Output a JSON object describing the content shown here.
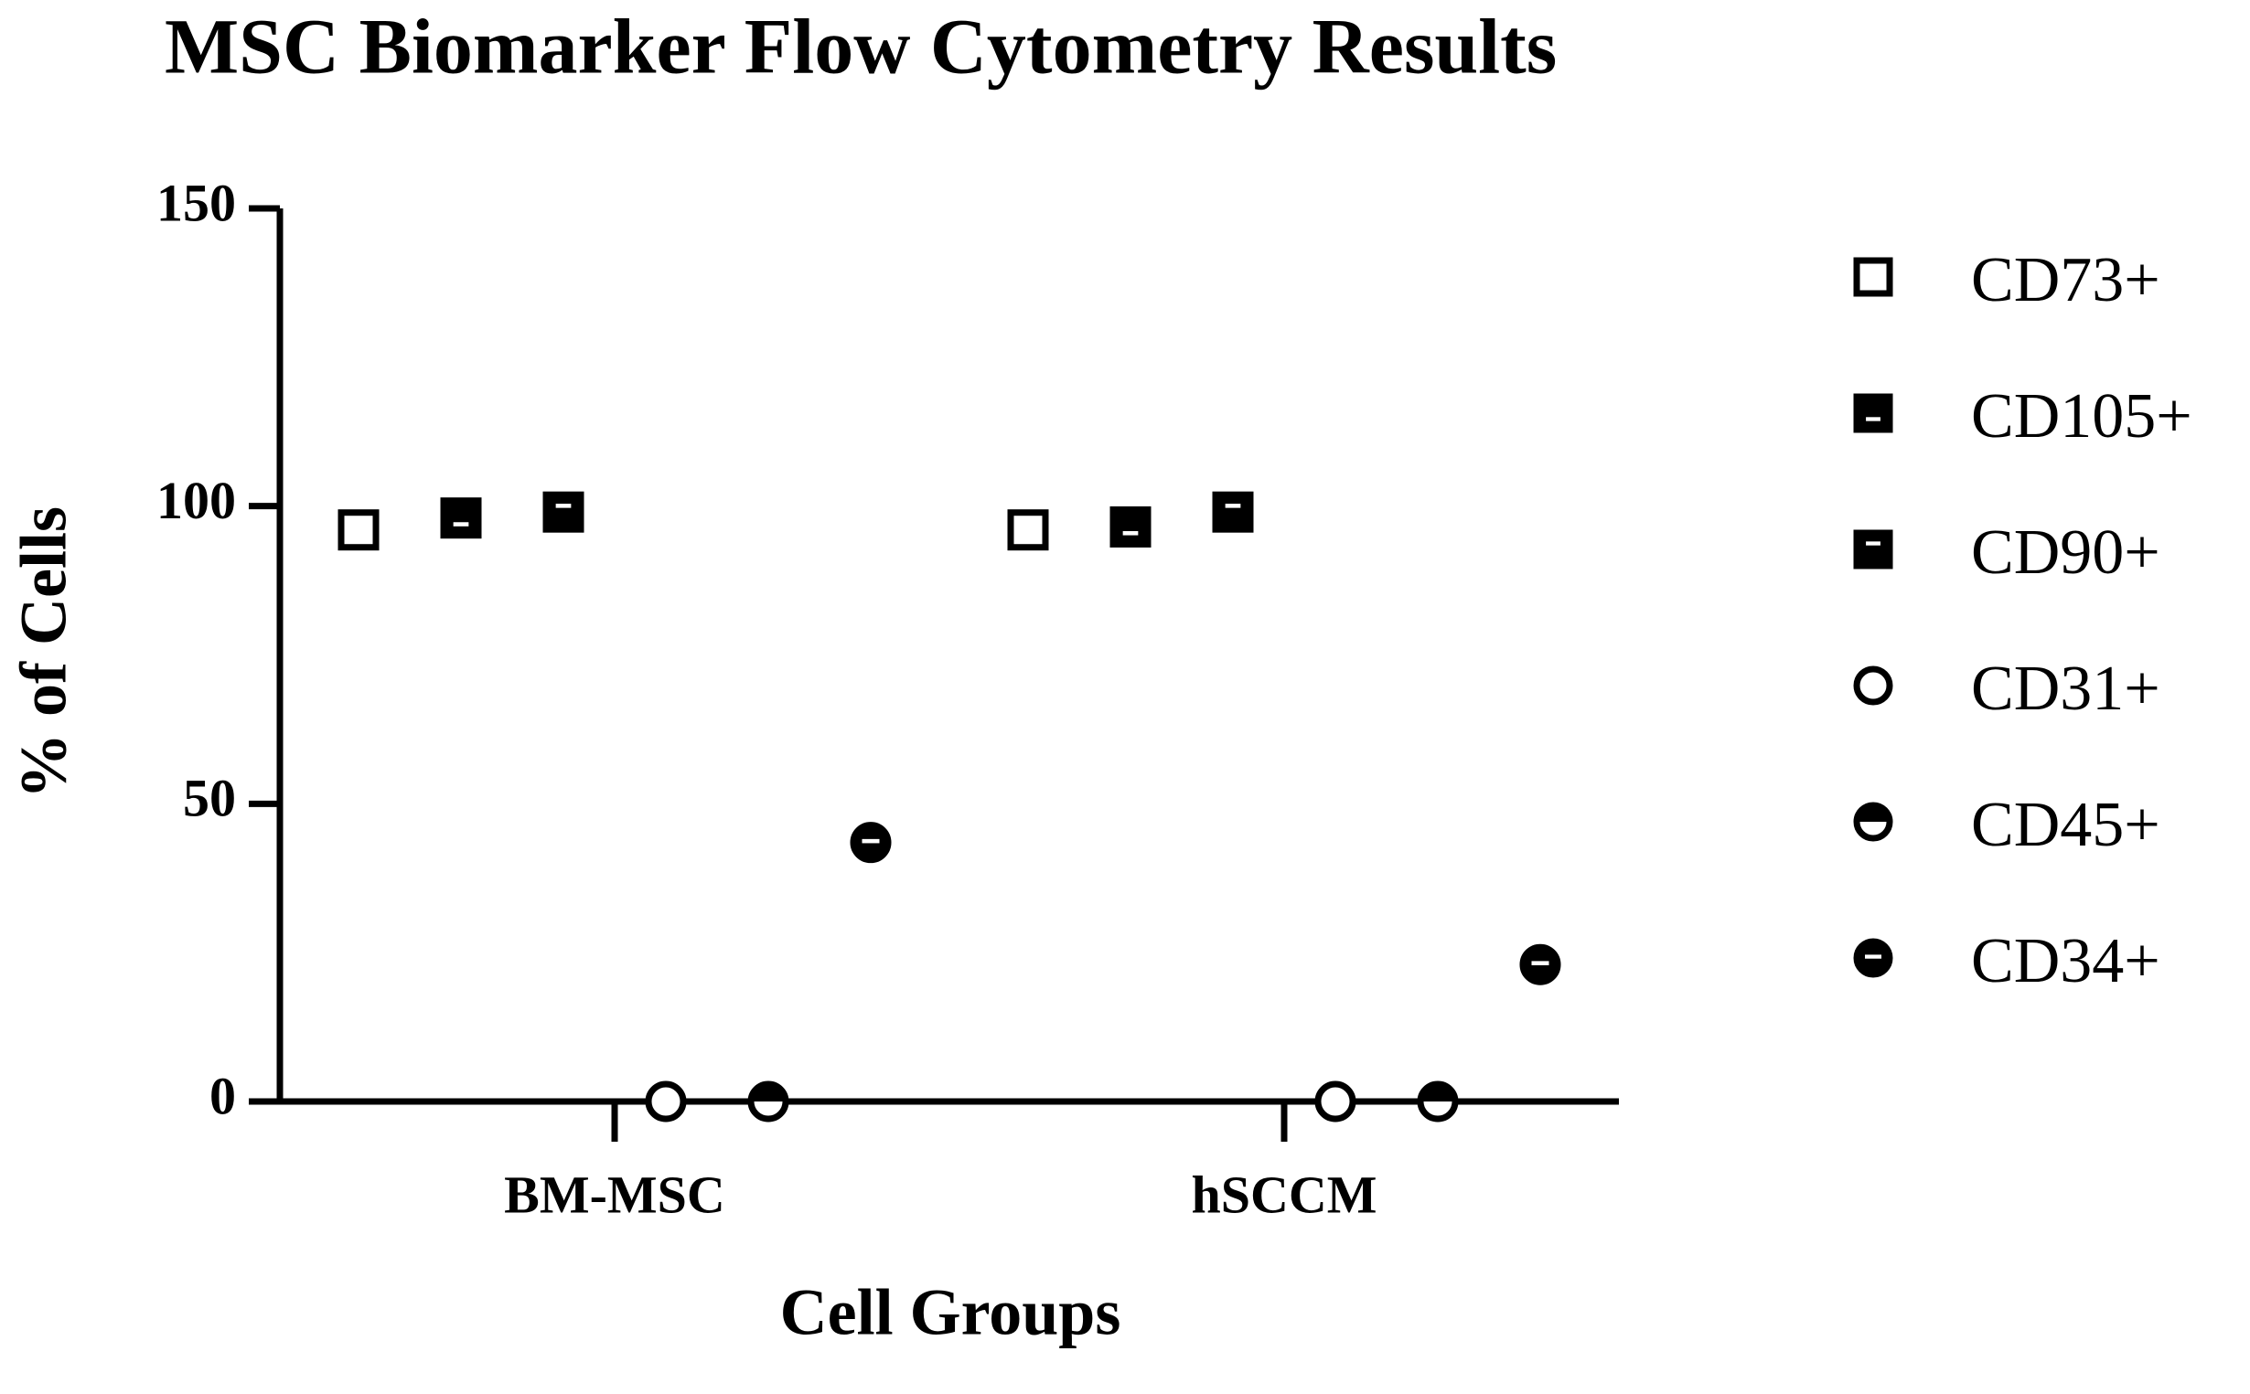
{
  "chart_data": {
    "type": "dot",
    "title": "MSC Biomarker Flow Cytometry Results",
    "x_label": "Cell Groups",
    "y_label": "% of Cells",
    "categories": [
      "BM-MSC",
      "hSCCM"
    ],
    "series": [
      {
        "name": "CD73+",
        "color": "#000000",
        "marker": "square-open",
        "values": [
          96,
          96
        ]
      },
      {
        "name": "CD105+",
        "color": "#000000",
        "marker": "square-dash-low",
        "values": [
          98,
          96.5
        ]
      },
      {
        "name": "CD90+",
        "color": "#000000",
        "marker": "square-dash-high",
        "values": [
          99,
          99
        ]
      },
      {
        "name": "CD31+",
        "color": "#000000",
        "marker": "circle-open",
        "values": [
          0,
          0
        ]
      },
      {
        "name": "CD45+",
        "color": "#000000",
        "marker": "circle-half",
        "values": [
          0,
          0
        ]
      },
      {
        "name": "CD34+",
        "color": "#000000",
        "marker": "circle-dash",
        "values": [
          43.5,
          23
        ]
      }
    ],
    "ylim": [
      0,
      150
    ],
    "yticks": [
      0,
      50,
      100,
      150
    ],
    "legend": "right"
  }
}
